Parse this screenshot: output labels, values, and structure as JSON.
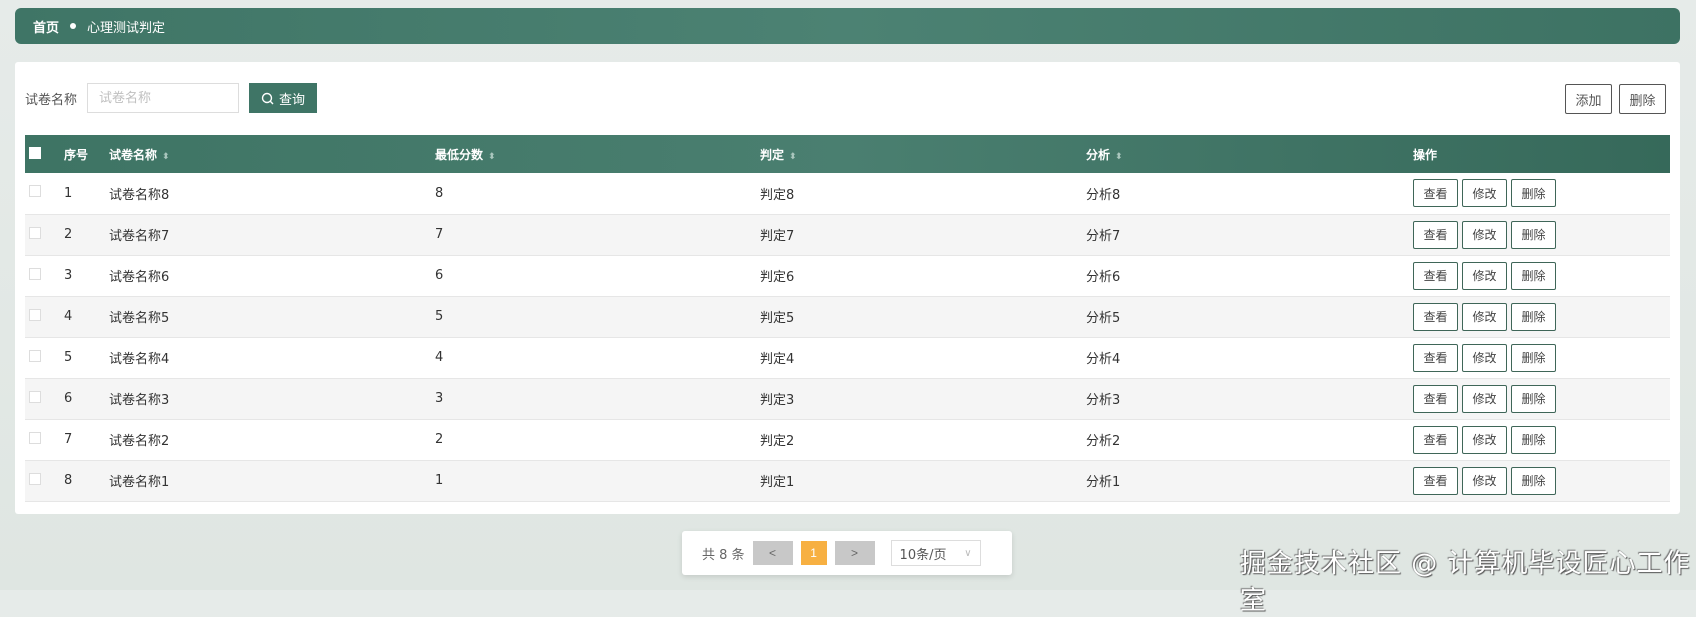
{
  "breadcrumb": {
    "home": "首页",
    "current": "心理测试判定"
  },
  "search": {
    "label": "试卷名称",
    "placeholder": "试卷名称",
    "value": "",
    "query_label": "查询"
  },
  "toolbar": {
    "add_label": "添加",
    "delete_label": "删除"
  },
  "table": {
    "columns": [
      "序号",
      "试卷名称",
      "最低分数",
      "判定",
      "分析",
      "操作"
    ],
    "rows": [
      {
        "no": "1",
        "name": "试卷名称8",
        "score": "8",
        "verdict": "判定8",
        "analysis": "分析8"
      },
      {
        "no": "2",
        "name": "试卷名称7",
        "score": "7",
        "verdict": "判定7",
        "analysis": "分析7"
      },
      {
        "no": "3",
        "name": "试卷名称6",
        "score": "6",
        "verdict": "判定6",
        "analysis": "分析6"
      },
      {
        "no": "4",
        "name": "试卷名称5",
        "score": "5",
        "verdict": "判定5",
        "analysis": "分析5"
      },
      {
        "no": "5",
        "name": "试卷名称4",
        "score": "4",
        "verdict": "判定4",
        "analysis": "分析4"
      },
      {
        "no": "6",
        "name": "试卷名称3",
        "score": "3",
        "verdict": "判定3",
        "analysis": "分析3"
      },
      {
        "no": "7",
        "name": "试卷名称2",
        "score": "2",
        "verdict": "判定2",
        "analysis": "分析2"
      },
      {
        "no": "8",
        "name": "试卷名称1",
        "score": "1",
        "verdict": "判定1",
        "analysis": "分析1"
      }
    ],
    "actions": {
      "view": "查看",
      "edit": "修改",
      "delete": "删除"
    }
  },
  "pagination": {
    "total": "共 8 条",
    "prev": "<",
    "current": "1",
    "next": ">",
    "page_size": "10条/页"
  },
  "watermark": "掘金技术社区 @ 计算机毕设匠心工作室",
  "colors": {
    "primary": "#3f7566",
    "page_active": "#f7b042"
  }
}
